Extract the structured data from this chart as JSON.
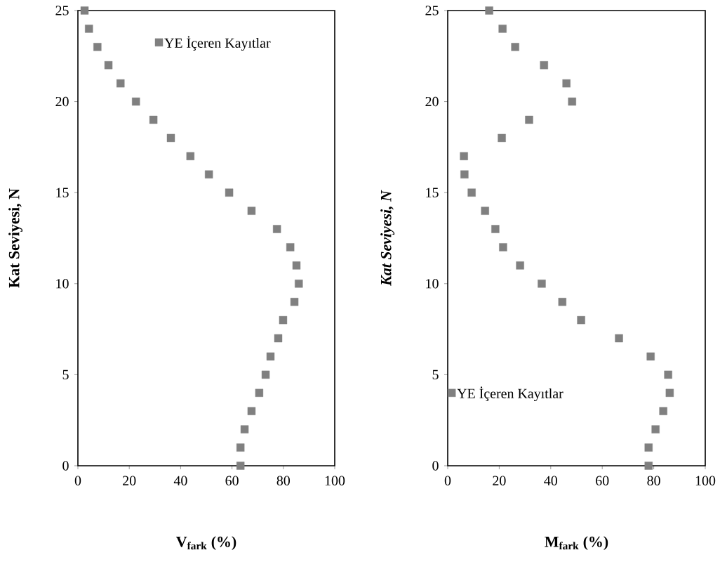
{
  "chart_data": [
    {
      "type": "scatter",
      "xlabel": "V$_{fark}$ (%)",
      "ylabel": "Kat Seviyesi, N",
      "xlim": [
        0,
        100
      ],
      "ylim": [
        0,
        25
      ],
      "xticks": [
        0,
        20,
        40,
        60,
        80,
        100
      ],
      "yticks": [
        0,
        5,
        10,
        15,
        20,
        25
      ],
      "legend": "top right",
      "marker": "square",
      "series": [
        {
          "name": "YE İçeren Kayıtlar",
          "color": "#808080",
          "x": [
            63.3,
            63.3,
            64.9,
            67.6,
            70.6,
            73.1,
            75.0,
            78.0,
            79.9,
            84.3,
            86.0,
            85.1,
            82.7,
            77.5,
            67.6,
            58.9,
            51.0,
            43.8,
            36.2,
            29.4,
            22.6,
            16.6,
            11.9,
            7.6,
            4.3,
            2.6
          ],
          "values": [
            0,
            1,
            2,
            3,
            4,
            5,
            6,
            7,
            8,
            9,
            10,
            11,
            12,
            13,
            14,
            15,
            16,
            17,
            18,
            19,
            20,
            21,
            22,
            23,
            24,
            25
          ]
        }
      ]
    },
    {
      "type": "scatter",
      "xlabel": "M$_{fark}$ (%)",
      "ylabel": "Kat Seviyesi, N",
      "xlim": [
        0,
        100
      ],
      "ylim": [
        0,
        25
      ],
      "xticks": [
        0,
        20,
        40,
        60,
        80,
        100
      ],
      "yticks": [
        0,
        5,
        10,
        15,
        20,
        25
      ],
      "legend": "bottom left",
      "marker": "square",
      "series": [
        {
          "name": "YE İçeren Kayıtlar",
          "color": "#808080",
          "x": [
            78.0,
            78.0,
            80.7,
            83.7,
            86.2,
            85.6,
            78.8,
            66.5,
            51.8,
            44.5,
            36.5,
            28.1,
            21.5,
            18.5,
            14.5,
            9.3,
            6.5,
            6.3,
            21.0,
            31.6,
            48.3,
            46.1,
            37.4,
            26.2,
            21.3,
            16.1
          ],
          "values": [
            0,
            1,
            2,
            3,
            4,
            5,
            6,
            7,
            8,
            9,
            10,
            11,
            12,
            13,
            14,
            15,
            16,
            17,
            18,
            19,
            20,
            21,
            22,
            23,
            24,
            25
          ]
        }
      ]
    }
  ]
}
